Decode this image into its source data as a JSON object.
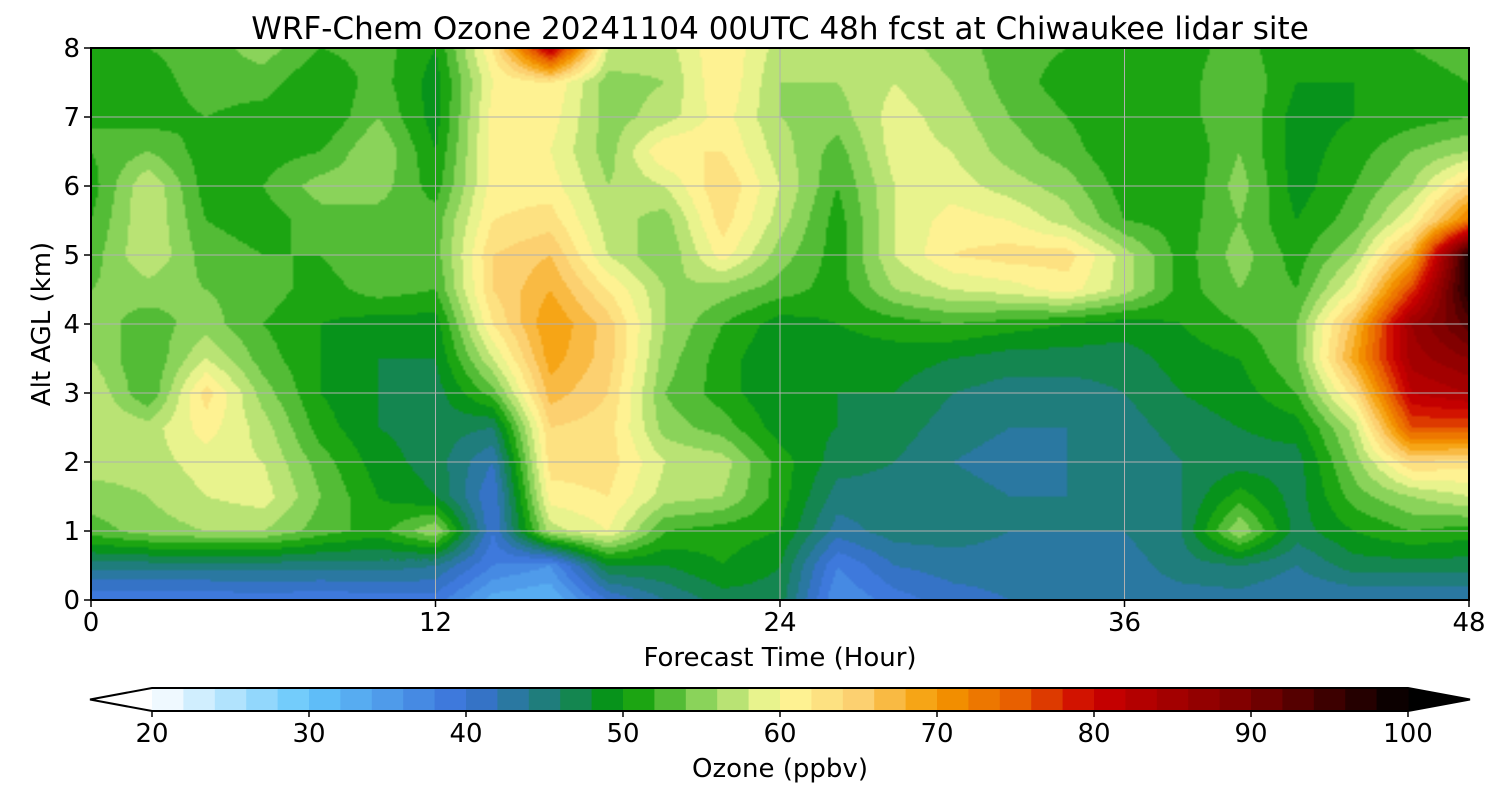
{
  "chart_data": {
    "type": "heatmap",
    "title": "WRF-Chem Ozone  20241104 00UTC 48h fcst at Chiwaukee lidar site",
    "xlabel": "Forecast Time (Hour)",
    "ylabel": "Alt AGL (km)",
    "xlim": [
      0,
      48
    ],
    "ylim": [
      0,
      8
    ],
    "xticks": [
      0,
      12,
      24,
      36,
      48
    ],
    "yticks": [
      0,
      1,
      2,
      3,
      4,
      5,
      6,
      7,
      8
    ],
    "grid": true,
    "x": [
      0,
      2,
      4,
      6,
      8,
      10,
      12,
      14,
      16,
      18,
      20,
      22,
      24,
      26,
      28,
      30,
      32,
      34,
      36,
      38,
      40,
      42,
      44,
      46,
      48
    ],
    "y": [
      0,
      0.5,
      1,
      1.5,
      2,
      2.5,
      3,
      3.5,
      4,
      4.5,
      5,
      5.5,
      6,
      6.5,
      7,
      7.5,
      8
    ],
    "z": [
      [
        38,
        38,
        38,
        39,
        38,
        39,
        39,
        33,
        32,
        40,
        44,
        47,
        47,
        36,
        39,
        41,
        42,
        43,
        43,
        43,
        43,
        42,
        42,
        42,
        42
      ],
      [
        45,
        45,
        45,
        45,
        45,
        45,
        44,
        38,
        36,
        48,
        48,
        50,
        48,
        38,
        42,
        43,
        43,
        43,
        43,
        45,
        46,
        44,
        47,
        47,
        47
      ],
      [
        53,
        55,
        56,
        56,
        53,
        51,
        56,
        40,
        57,
        60,
        52,
        51,
        50,
        43,
        45,
        45,
        44,
        44,
        44,
        46,
        56,
        47,
        50,
        52,
        51
      ],
      [
        55,
        56,
        58,
        59,
        54,
        50,
        48,
        40,
        61,
        62,
        57,
        56,
        51,
        45,
        45,
        45,
        44,
        44,
        44,
        46,
        51,
        47,
        53,
        56,
        58
      ],
      [
        57,
        57,
        59,
        58,
        53,
        49,
        47,
        42,
        63,
        63,
        58,
        57,
        51,
        47,
        46,
        44,
        43,
        44,
        44,
        46,
        47,
        47,
        55,
        64,
        63
      ],
      [
        58,
        57,
        61,
        57,
        51,
        48,
        47,
        46,
        64,
        63,
        55,
        53,
        49,
        48,
        47,
        45,
        44,
        44,
        45,
        47,
        48,
        49,
        57,
        76,
        76
      ],
      [
        58,
        52,
        63,
        55,
        50,
        48,
        47,
        53,
        67,
        64,
        54,
        51,
        48,
        48,
        48,
        46,
        45,
        45,
        46,
        48,
        49,
        52,
        63,
        82,
        84
      ],
      [
        56,
        52,
        58,
        53,
        50,
        48,
        48,
        58,
        69,
        65,
        55,
        51,
        48,
        49,
        49,
        48,
        47,
        47,
        47,
        49,
        50,
        54,
        69,
        85,
        88
      ],
      [
        55,
        53,
        55,
        52,
        50,
        49,
        49,
        62,
        70,
        65,
        56,
        52,
        49,
        50,
        51,
        52,
        51,
        50,
        49,
        50,
        52,
        54,
        67,
        86,
        93
      ],
      [
        54,
        55,
        54,
        53,
        51,
        53,
        52,
        64,
        68,
        62,
        56,
        55,
        53,
        51,
        56,
        58,
        59,
        61,
        57,
        51,
        54,
        52,
        60,
        77,
        98
      ],
      [
        53,
        58,
        53,
        52,
        52,
        54,
        53,
        64,
        66,
        58,
        54,
        61,
        55,
        51,
        58,
        62,
        63,
        63,
        57,
        51,
        55,
        51,
        56,
        68,
        98
      ],
      [
        52,
        58,
        52,
        51,
        53,
        53,
        53,
        62,
        63,
        57,
        55,
        63,
        57,
        51,
        58,
        61,
        60,
        57,
        52,
        51,
        54,
        50,
        53,
        60,
        73
      ],
      [
        51,
        58,
        51,
        52,
        55,
        55,
        51,
        61,
        61,
        56,
        58,
        64,
        58,
        52,
        58,
        59,
        57,
        55,
        51,
        50,
        55,
        49,
        52,
        56,
        64
      ],
      [
        52,
        54,
        51,
        51,
        52,
        56,
        50,
        61,
        60,
        55,
        62,
        62,
        57,
        53,
        59,
        58,
        55,
        53,
        50,
        50,
        54,
        49,
        51,
        54,
        56
      ],
      [
        52,
        51,
        52,
        51,
        50,
        54,
        49,
        61,
        61,
        55,
        57,
        61,
        56,
        55,
        59,
        57,
        54,
        52,
        50,
        51,
        54,
        49,
        50,
        51,
        52
      ],
      [
        51,
        51,
        53,
        53,
        50,
        53,
        49,
        60,
        62,
        55,
        56,
        62,
        56,
        56,
        58,
        56,
        53,
        51,
        50,
        51,
        54,
        50,
        50,
        51,
        52
      ],
      [
        52,
        52,
        53,
        55,
        52,
        53,
        50,
        62,
        83,
        58,
        57,
        62,
        57,
        58,
        57,
        55,
        53,
        52,
        50,
        51,
        53,
        50,
        51,
        52,
        53
      ]
    ]
  },
  "colorbar": {
    "label": "Ozone  (ppbv)",
    "min": 20,
    "max": 100,
    "ticks": [
      20,
      30,
      40,
      50,
      60,
      70,
      80,
      90,
      100
    ],
    "extend": "both",
    "stops": [
      {
        "v": 20,
        "c": "#ffffff"
      },
      {
        "v": 30,
        "c": "#63c6fb"
      },
      {
        "v": 40,
        "c": "#3a70d8"
      },
      {
        "v": 46,
        "c": "#1a7f6a"
      },
      {
        "v": 50,
        "c": "#009a00"
      },
      {
        "v": 55,
        "c": "#8ad35a"
      },
      {
        "v": 60,
        "c": "#fffb9a"
      },
      {
        "v": 65,
        "c": "#fcd070"
      },
      {
        "v": 70,
        "c": "#f49a00"
      },
      {
        "v": 75,
        "c": "#e86000"
      },
      {
        "v": 80,
        "c": "#cc0000"
      },
      {
        "v": 90,
        "c": "#7a0000"
      },
      {
        "v": 100,
        "c": "#000000"
      }
    ]
  }
}
